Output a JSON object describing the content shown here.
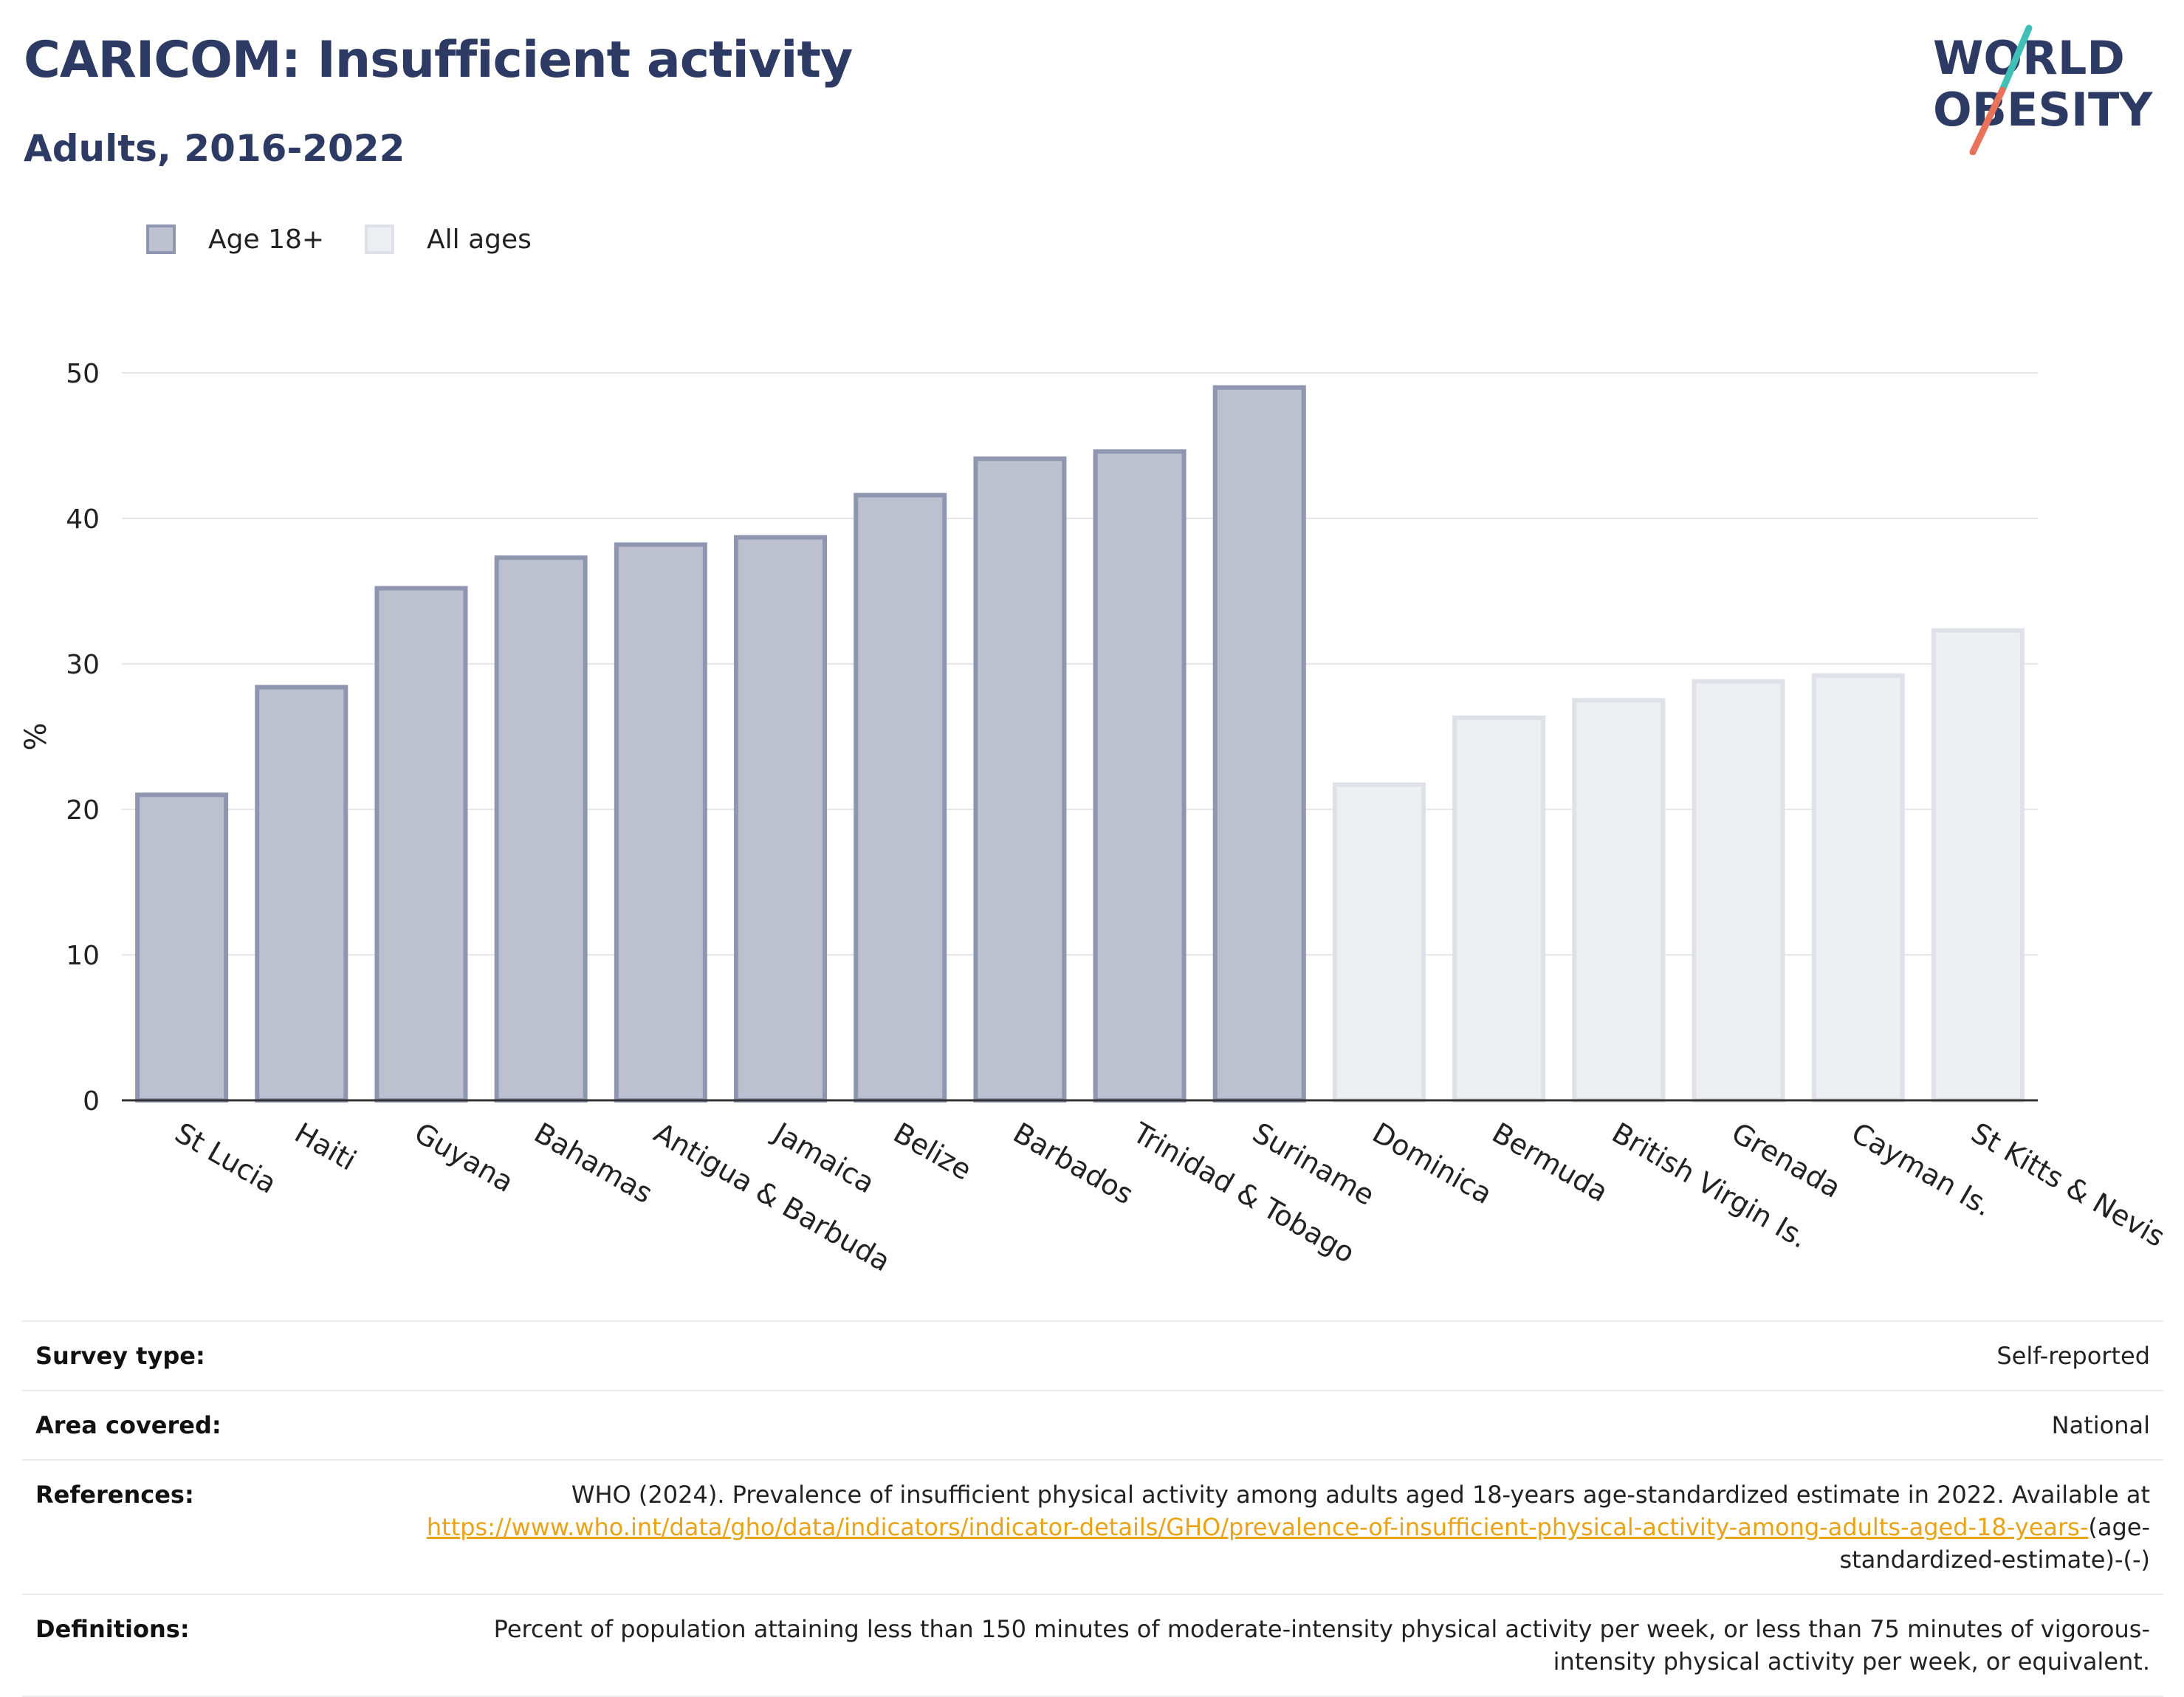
{
  "title": "CARICOM: Insufficient activity",
  "subtitle": "Adults, 2016-2022",
  "logo": {
    "line1": "WORLD",
    "line2": "OBESITY",
    "color": "#2d3a63",
    "slash_top": "#3fbfb5",
    "slash_bottom": "#e8735a"
  },
  "legend": [
    {
      "name": "Age 18+",
      "fill": "#bcc0cf",
      "stroke": "#8f96b0"
    },
    {
      "name": "All ages",
      "fill": "#eeeff3",
      "stroke": "#dfe1e8"
    }
  ],
  "chart_data": {
    "type": "bar",
    "title": "CARICOM: Insufficient activity",
    "subtitle": "Adults, 2016-2022",
    "ylabel": "%",
    "xlabel": "",
    "ylim": [
      0,
      50
    ],
    "yticks": [
      0,
      10,
      20,
      30,
      40,
      50
    ],
    "grid": true,
    "legend_position": "top-left",
    "categories": [
      "St Lucia",
      "Haiti",
      "Guyana",
      "Bahamas",
      "Antigua & Barbuda",
      "Jamaica",
      "Belize",
      "Barbados",
      "Trinidad & Tobago",
      "Suriname",
      "Dominica",
      "Bermuda",
      "British Virgin Is.",
      "Grenada",
      "Cayman Is.",
      "St Kitts & Nevis"
    ],
    "series": [
      {
        "name": "Age 18+",
        "values": [
          21.0,
          28.4,
          35.2,
          37.3,
          38.2,
          38.7,
          41.6,
          44.1,
          44.6,
          49.0,
          null,
          null,
          null,
          null,
          null,
          null
        ]
      },
      {
        "name": "All ages",
        "values": [
          null,
          null,
          null,
          null,
          null,
          null,
          null,
          null,
          null,
          null,
          21.7,
          26.3,
          27.5,
          28.8,
          29.2,
          32.3
        ]
      }
    ]
  },
  "info": [
    {
      "label": "Survey type:",
      "value": "Self-reported"
    },
    {
      "label": "Area covered:",
      "value": "National"
    },
    {
      "label": "References:",
      "value": "WHO (2024). Prevalence of insufficient physical activity among adults aged 18-years age-standardized estimate in 2022. Available at",
      "link": "https://www.who.int/data/gho/data/indicators/indicator-details/GHO/prevalence-of-insufficient-physical-activity-among-adults-aged-18-years-",
      "suffix": "(age-standardized-estimate)-(-)"
    },
    {
      "label": "Definitions:",
      "value": "Percent of population attaining less than 150 minutes of moderate-intensity physical activity per week, or less than 75 minutes of vigorous-intensity physical activity per week, or equivalent."
    }
  ]
}
